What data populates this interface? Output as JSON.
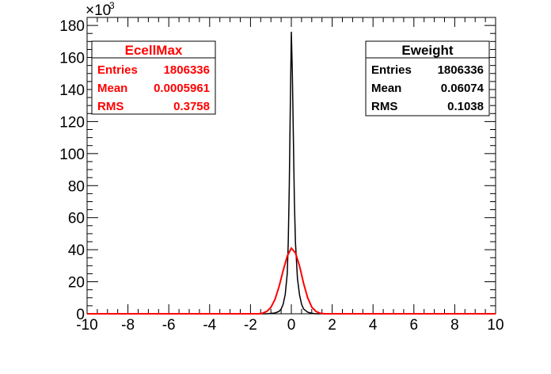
{
  "chart_data": {
    "type": "line",
    "title": "",
    "xlabel": "",
    "ylabel": "",
    "xlim": [
      -10,
      10
    ],
    "ylim": [
      0,
      185000
    ],
    "y_multiplier_label": "×10",
    "y_multiplier_exponent": "3",
    "x_tick_labels": [
      "-10",
      "-8",
      "-6",
      "-4",
      "-2",
      "0",
      "2",
      "4",
      "6",
      "8",
      "10"
    ],
    "y_tick_labels": [
      "0",
      "20",
      "40",
      "60",
      "80",
      "100",
      "120",
      "140",
      "160",
      "180"
    ],
    "grid": false,
    "series": [
      {
        "name": "Eweight",
        "color": "#000000",
        "x": [
          -10,
          -1.2,
          -0.8,
          -0.6,
          -0.5,
          -0.4,
          -0.3,
          -0.2,
          -0.15,
          -0.1,
          -0.05,
          0,
          0.05,
          0.1,
          0.15,
          0.2,
          0.3,
          0.4,
          0.5,
          0.6,
          0.8,
          1.0,
          1.2,
          10
        ],
        "values": [
          0,
          0,
          500,
          1500,
          3000,
          6000,
          12000,
          25000,
          45000,
          80000,
          130000,
          176000,
          150000,
          110000,
          70000,
          45000,
          22000,
          12000,
          6000,
          3000,
          1000,
          300,
          0,
          0
        ]
      },
      {
        "name": "EcellMax",
        "color": "#ff0000",
        "x": [
          -10,
          -1.6,
          -1.4,
          -1.2,
          -1.0,
          -0.8,
          -0.6,
          -0.4,
          -0.2,
          0,
          0.2,
          0.4,
          0.6,
          0.8,
          1.0,
          1.2,
          1.4,
          1.6,
          10
        ],
        "values": [
          0,
          0,
          400,
          1500,
          4000,
          9000,
          17000,
          27000,
          36000,
          41000,
          38000,
          30000,
          19000,
          10000,
          4200,
          1500,
          400,
          0,
          0
        ]
      }
    ],
    "stat_boxes": [
      {
        "title": "EcellMax",
        "color": "#ff0000",
        "rows": [
          {
            "label": "Entries",
            "value": "1806336"
          },
          {
            "label": "Mean",
            "value": "0.0005961"
          },
          {
            "label": "RMS",
            "value": "0.3758"
          }
        ]
      },
      {
        "title": "Eweight",
        "color": "#000000",
        "rows": [
          {
            "label": "Entries",
            "value": "1806336"
          },
          {
            "label": "Mean",
            "value": "0.06074"
          },
          {
            "label": "RMS",
            "value": "0.1038"
          }
        ]
      }
    ]
  }
}
